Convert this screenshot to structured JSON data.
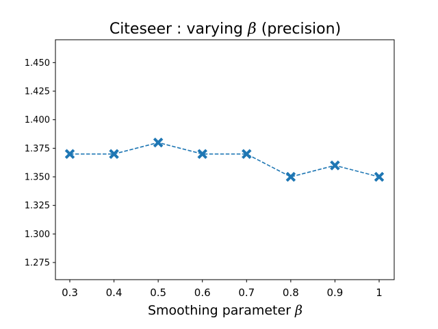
{
  "chart_data": {
    "type": "line",
    "title": "Citeseer : varying β (precision)",
    "title_prefix": "Citeseer : varying ",
    "title_symbol": "β",
    "title_suffix": " (precision)",
    "xlabel": "Smoothing parameter β",
    "xlabel_prefix": "Smoothing parameter ",
    "xlabel_symbol": "β",
    "ylabel": "",
    "categories": [
      "0.3",
      "0.4",
      "0.5",
      "0.6",
      "0.7",
      "0.8",
      "0.9",
      "1"
    ],
    "series": [
      {
        "name": "precision",
        "values": [
          1.37,
          1.37,
          1.38,
          1.37,
          1.37,
          1.35,
          1.36,
          1.35
        ],
        "color": "#1f77b4",
        "line_style": "dashed",
        "marker": "X"
      }
    ],
    "ylim": [
      1.26,
      1.47
    ],
    "yticks": [
      1.275,
      1.3,
      1.325,
      1.35,
      1.375,
      1.4,
      1.425,
      1.45
    ],
    "ytick_labels": [
      "1.275",
      "1.300",
      "1.325",
      "1.350",
      "1.375",
      "1.400",
      "1.425",
      "1.450"
    ],
    "grid": false,
    "legend": "none"
  }
}
